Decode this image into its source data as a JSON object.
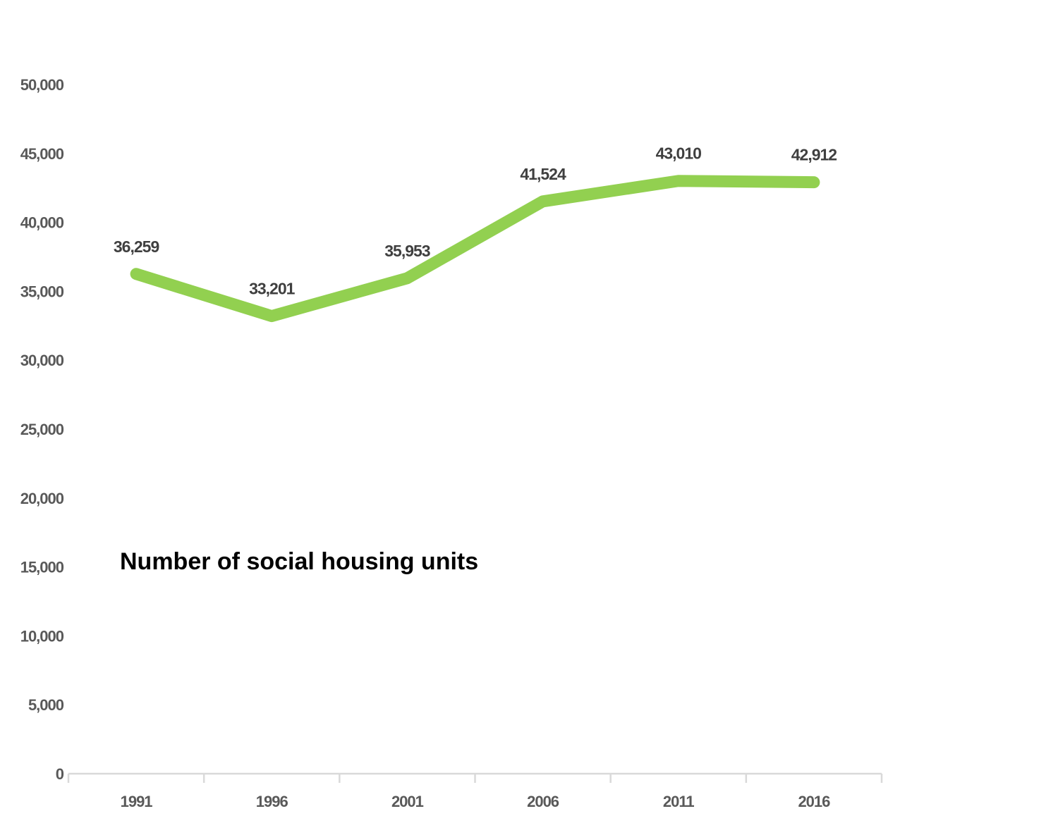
{
  "title": "Number of social housing units",
  "colors": {
    "line": "#92D050",
    "axis": "#D9D9D9",
    "y_tick_label": "#595959",
    "x_tick_label": "#595959",
    "data_label": "#3F3F3F",
    "title": "#000000",
    "background": "#FFFFFF"
  },
  "chart_data": {
    "type": "line",
    "title": "Number of social housing units",
    "xlabel": "",
    "ylabel": "",
    "categories": [
      "1991",
      "1996",
      "2001",
      "2006",
      "2011",
      "2016"
    ],
    "series": [
      {
        "name": "Number of social housing units",
        "values": [
          36259,
          33201,
          35953,
          41524,
          43010,
          42912
        ]
      }
    ],
    "data_labels": [
      "36,259",
      "33,201",
      "35,953",
      "41,524",
      "43,010",
      "42,912"
    ],
    "y_ticks": [
      {
        "value": 0,
        "label": "0"
      },
      {
        "value": 5000,
        "label": "5,000"
      },
      {
        "value": 10000,
        "label": "10,000"
      },
      {
        "value": 15000,
        "label": "15,000"
      },
      {
        "value": 20000,
        "label": "20,000"
      },
      {
        "value": 25000,
        "label": "25,000"
      },
      {
        "value": 30000,
        "label": "30,000"
      },
      {
        "value": 35000,
        "label": "35,000"
      },
      {
        "value": 40000,
        "label": "40,000"
      },
      {
        "value": 45000,
        "label": "45,000"
      },
      {
        "value": 50000,
        "label": "50,000"
      }
    ],
    "ylim": [
      0,
      50000
    ],
    "grid": false,
    "legend": "none"
  }
}
